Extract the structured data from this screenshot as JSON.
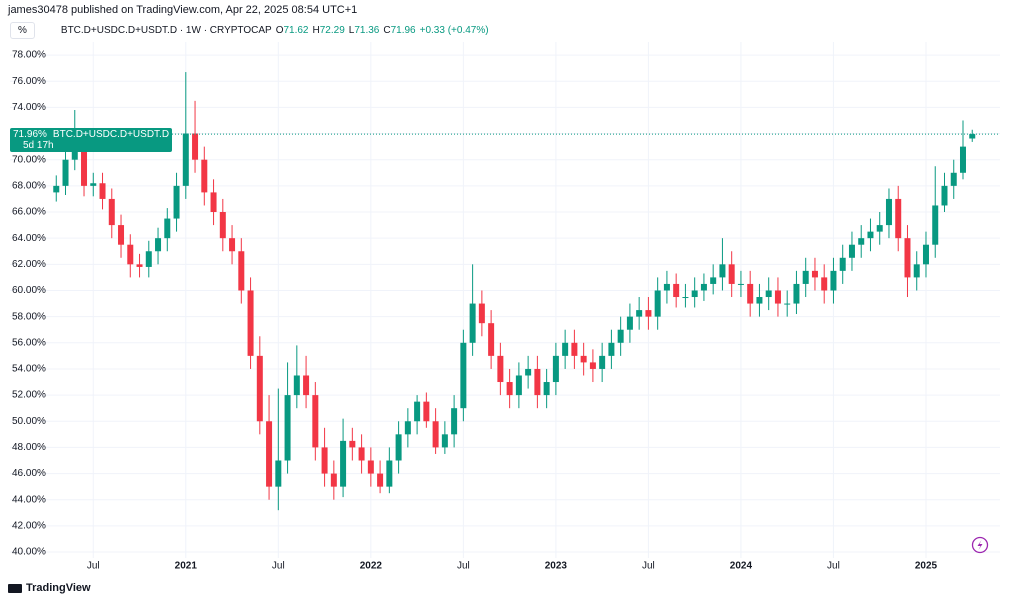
{
  "header": {
    "published": "james30478 published on TradingView.com, Apr 22, 2025 08:54 UTC+1",
    "scale_button": "%",
    "symbol": "BTC.D+USDC.D+USDT.D · 1W · CRYPTOCAP",
    "ohlc_labels": [
      "O",
      "H",
      "L",
      "C"
    ],
    "change": "+0.33 (+0.47%)"
  },
  "chart_data": {
    "type": "candlestick",
    "x": [
      2020.3,
      2020.35,
      2020.4,
      2020.45,
      2020.5,
      2020.55,
      2020.6,
      2020.65,
      2020.7,
      2020.75,
      2020.8,
      2020.85,
      2020.9,
      2020.95,
      2021,
      2021.05,
      2021.1,
      2021.15,
      2021.2,
      2021.25,
      2021.3,
      2021.35,
      2021.4,
      2021.45,
      2021.5,
      2021.55,
      2021.6,
      2021.65,
      2021.7,
      2021.75,
      2021.8,
      2021.85,
      2021.9,
      2021.95,
      2022,
      2022.05,
      2022.1,
      2022.15,
      2022.2,
      2022.25,
      2022.3,
      2022.35,
      2022.4,
      2022.45,
      2022.5,
      2022.55,
      2022.6,
      2022.65,
      2022.7,
      2022.75,
      2022.8,
      2022.85,
      2022.9,
      2022.95,
      2023,
      2023.05,
      2023.1,
      2023.15,
      2023.2,
      2023.25,
      2023.3,
      2023.35,
      2023.4,
      2023.45,
      2023.5,
      2023.55,
      2023.6,
      2023.65,
      2023.7,
      2023.75,
      2023.8,
      2023.85,
      2023.9,
      2023.95,
      2024,
      2024.05,
      2024.1,
      2024.15,
      2024.2,
      2024.25,
      2024.3,
      2024.35,
      2024.4,
      2024.45,
      2024.5,
      2024.55,
      2024.6,
      2024.65,
      2024.7,
      2024.75,
      2024.8,
      2024.85,
      2024.9,
      2024.95,
      2025,
      2025.05,
      2025.1,
      2025.15,
      2025.2,
      2025.25
    ],
    "open": [
      67.5,
      68,
      70,
      71.5,
      68,
      68.2,
      67,
      65,
      63.5,
      62,
      61.8,
      63,
      64,
      65.5,
      68,
      72,
      70,
      67.5,
      66,
      64,
      63,
      60,
      55,
      50,
      45,
      47,
      52,
      53.5,
      52,
      48,
      46,
      45,
      48.5,
      48,
      47,
      46,
      45,
      47,
      49,
      50,
      51.5,
      50,
      48,
      49,
      51,
      56,
      59,
      57.5,
      55,
      53,
      52,
      53.5,
      54,
      52,
      53,
      55,
      56,
      55,
      54.5,
      54,
      55,
      56,
      57,
      58,
      58.5,
      58,
      60,
      60.5,
      59.5,
      59.5,
      60,
      60.5,
      61,
      62,
      60.5,
      60.5,
      59,
      59.5,
      60,
      59,
      59,
      60.5,
      61.5,
      61,
      60,
      61.5,
      62.5,
      63.5,
      64,
      64.5,
      65,
      67,
      64,
      61,
      62,
      63.5,
      66.5,
      68,
      69,
      71.62
    ],
    "high": [
      68.8,
      70.8,
      73.8,
      72.2,
      69,
      69,
      67.8,
      65.8,
      64.3,
      62.8,
      63.8,
      64.8,
      66.3,
      69,
      76.7,
      74.5,
      71,
      68.5,
      67,
      65,
      64,
      61,
      56.5,
      52,
      52.5,
      54.5,
      55.8,
      55,
      53,
      49.5,
      47,
      50.2,
      49.5,
      49,
      48,
      47,
      48,
      50,
      51,
      52,
      52.2,
      51,
      50,
      52,
      57,
      62,
      60,
      58.5,
      56,
      54,
      54.5,
      55,
      55,
      54,
      56,
      57,
      57,
      56,
      55.5,
      56,
      57,
      58,
      59,
      59.5,
      59.5,
      61,
      61.5,
      61.3,
      60.5,
      61,
      61.3,
      62,
      64,
      63,
      61.5,
      61.5,
      60.5,
      61,
      61,
      60,
      61.5,
      62.5,
      62.5,
      62,
      62.5,
      63.5,
      64.5,
      65,
      65.5,
      66,
      67.8,
      68,
      65,
      63,
      64.5,
      69.5,
      69,
      70,
      73,
      72.29
    ],
    "low": [
      66.8,
      67.3,
      69.2,
      67.2,
      67.2,
      66.2,
      64,
      62.5,
      61,
      61,
      61,
      62,
      63,
      64.5,
      67,
      69,
      66.5,
      65,
      63,
      62,
      59,
      54,
      49,
      44,
      43.2,
      46,
      51,
      51,
      47,
      45,
      44,
      44.2,
      47,
      46,
      45,
      44.5,
      44.5,
      46,
      48,
      49,
      49.5,
      47.5,
      47.5,
      48,
      50,
      55,
      56.5,
      54,
      52,
      51,
      51,
      52.5,
      51,
      51,
      52,
      54,
      54,
      53.5,
      53,
      53,
      54,
      55,
      56,
      57,
      57,
      57,
      59,
      58.7,
      58.7,
      58.7,
      59.2,
      59.7,
      60,
      59.5,
      59.5,
      58,
      58,
      58.5,
      58,
      58,
      58.2,
      59.5,
      60,
      59,
      59,
      60.5,
      61.5,
      62.5,
      63,
      63.5,
      64,
      63,
      59.5,
      60,
      61,
      62.5,
      66,
      67,
      68.5,
      71.36
    ],
    "close": [
      68,
      70,
      71.5,
      68,
      68.2,
      67,
      65,
      63.5,
      62,
      61.8,
      63,
      64,
      65.5,
      68,
      72,
      70,
      67.5,
      66,
      64,
      63,
      60,
      55,
      50,
      45,
      47,
      52,
      53.5,
      52,
      48,
      46,
      45,
      48.5,
      48,
      47,
      46,
      45,
      47,
      49,
      50,
      51.5,
      50,
      48,
      49,
      51,
      56,
      59,
      57.5,
      55,
      53,
      52,
      53.5,
      54,
      52,
      53,
      55,
      56,
      55,
      54.5,
      54,
      55,
      56,
      57,
      58,
      58.5,
      58,
      60,
      60.5,
      59.5,
      59.5,
      60,
      60.5,
      61,
      62,
      60.5,
      60.5,
      59,
      59.5,
      60,
      59,
      59,
      60.5,
      61.5,
      61,
      60,
      61.5,
      62.5,
      63.5,
      64,
      64.5,
      65,
      67,
      64,
      61,
      62,
      63.5,
      66.5,
      68,
      69,
      71,
      71.96
    ],
    "up_color": "#089981",
    "down_color": "#f23645",
    "xlim": [
      2020.05,
      2025.4
    ],
    "xticks": [
      {
        "value": 2020.5,
        "label": "Jul"
      },
      {
        "value": 2021,
        "label": "2021"
      },
      {
        "value": 2021.5,
        "label": "Jul"
      },
      {
        "value": 2022,
        "label": "2022"
      },
      {
        "value": 2022.5,
        "label": "Jul"
      },
      {
        "value": 2023,
        "label": "2023"
      },
      {
        "value": 2023.5,
        "label": "Jul"
      },
      {
        "value": 2024,
        "label": "2024"
      },
      {
        "value": 2024.5,
        "label": "Jul"
      },
      {
        "value": 2025,
        "label": "2025"
      }
    ],
    "ylim": [
      39.2,
      79
    ],
    "yticks": [
      {
        "value": 40,
        "label": "40.00%"
      },
      {
        "value": 42,
        "label": "42.00%"
      },
      {
        "value": 44,
        "label": "44.00%"
      },
      {
        "value": 46,
        "label": "46.00%"
      },
      {
        "value": 48,
        "label": "48.00%"
      },
      {
        "value": 50,
        "label": "50.00%"
      },
      {
        "value": 52,
        "label": "52.00%"
      },
      {
        "value": 54,
        "label": "54.00%"
      },
      {
        "value": 56,
        "label": "56.00%"
      },
      {
        "value": 58,
        "label": "58.00%"
      },
      {
        "value": 60,
        "label": "60.00%"
      },
      {
        "value": 62,
        "label": "62.00%"
      },
      {
        "value": 64,
        "label": "64.00%"
      },
      {
        "value": 66,
        "label": "66.00%"
      },
      {
        "value": 68,
        "label": "68.00%"
      },
      {
        "value": 70,
        "label": "70.00%"
      },
      {
        "value": 72,
        "label": "72.00%"
      },
      {
        "value": 74,
        "label": "74.00%"
      },
      {
        "value": 76,
        "label": "76.00%"
      },
      {
        "value": 78,
        "label": "78.00%"
      }
    ],
    "grid": true,
    "last_price": {
      "label": "71.96%",
      "name": "BTC.D+USDC.D+USDT.D",
      "countdown": "5d 17h"
    }
  },
  "footer": {
    "brand": "TradingView"
  }
}
